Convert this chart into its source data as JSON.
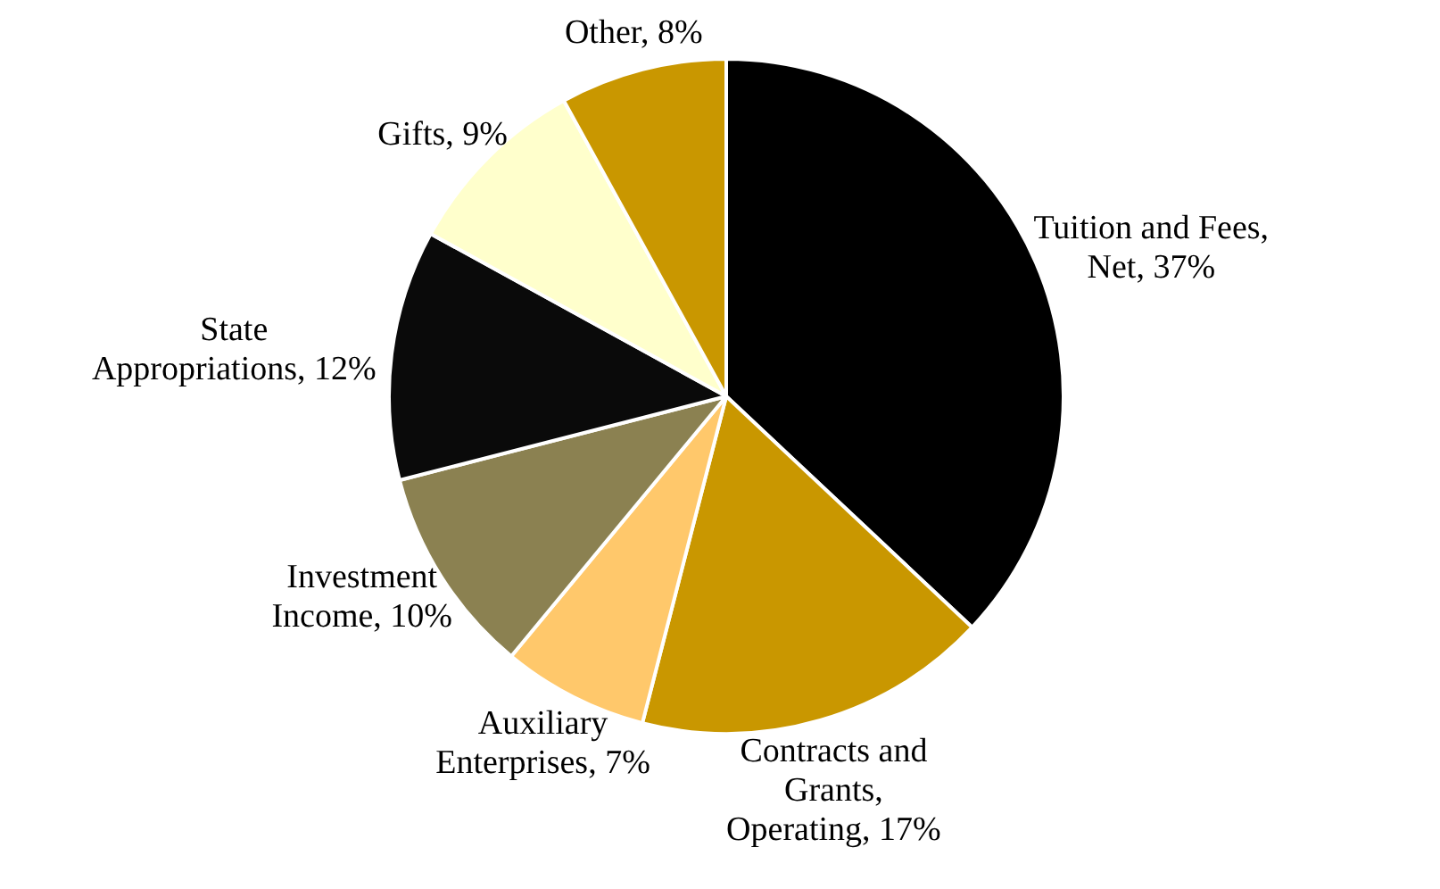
{
  "chart_data": {
    "type": "pie",
    "categories": [
      "Tuition and Fees, Net",
      "Contracts and Grants, Operating",
      "Auxiliary Enterprises",
      "Investment Income",
      "State Appropriations",
      "Gifts",
      "Other"
    ],
    "values": [
      37,
      17,
      7,
      10,
      12,
      9,
      8
    ],
    "value_labels": [
      "37%",
      "17%",
      "7%",
      "10%",
      "12%",
      "9%",
      "8%"
    ],
    "colors": [
      "#000000",
      "#c99700",
      "#ffc86b",
      "#8b8151",
      "#0a0a0a",
      "#ffffcc",
      "#c99700"
    ],
    "legend": false
  }
}
